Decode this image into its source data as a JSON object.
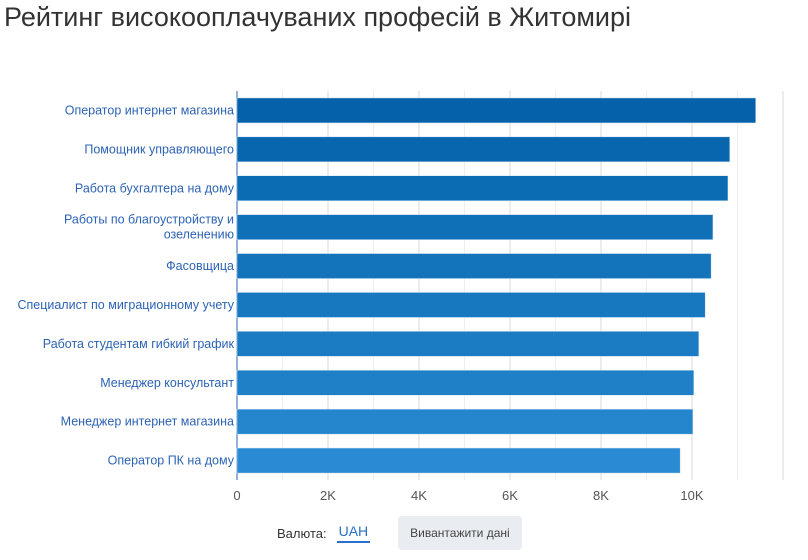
{
  "title": "Рейтинг високооплачуваних професій в Житомирі",
  "chart_data": {
    "type": "bar",
    "orientation": "horizontal",
    "categories": [
      [
        "Оператор интернет магазина"
      ],
      [
        "Помощник управляющего"
      ],
      [
        "Работа бухгалтера на дому"
      ],
      [
        "Работы по благоустройству и",
        "озеленению"
      ],
      [
        "Фасовщица"
      ],
      [
        "Специалист по миграционному учету"
      ],
      [
        "Работа студентам гибкий график"
      ],
      [
        "Менеджер консультант"
      ],
      [
        "Менеджер интернет магазина"
      ],
      [
        "Оператор ПК на дому"
      ]
    ],
    "values": [
      11400,
      10830,
      10790,
      10460,
      10420,
      10290,
      10150,
      10040,
      10020,
      9740
    ],
    "colors": [
      "#0562aa",
      "#0866ae",
      "#0b6bb3",
      "#0f6fb7",
      "#1373bb",
      "#1778bf",
      "#1b7cc4",
      "#1f80c8",
      "#2585cd",
      "#2b8ad4"
    ],
    "xticks": [
      "0",
      "2K",
      "4K",
      "6K",
      "8K",
      "10K"
    ],
    "xlim": [
      0,
      12000
    ],
    "grid": true
  },
  "footer": {
    "currency_label": "Валюта:",
    "currency_value": "UAH",
    "download_label": "Вивантажити дані"
  }
}
